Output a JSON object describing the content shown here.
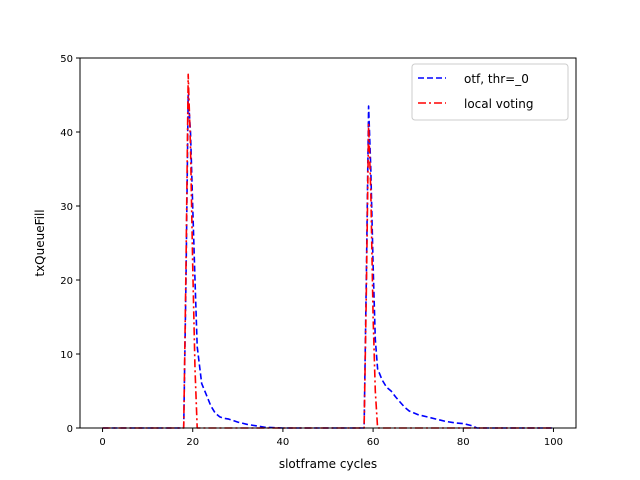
{
  "chart_data": {
    "type": "line",
    "xlabel": "slotframe cycles",
    "ylabel": "txQueueFill",
    "xlim": [
      -5,
      105
    ],
    "ylim": [
      0,
      50
    ],
    "xticks": [
      0,
      20,
      40,
      60,
      80,
      100
    ],
    "yticks": [
      0,
      10,
      20,
      30,
      40,
      50
    ],
    "legend_position": "top-right",
    "series": [
      {
        "name": "otf, thr=_0",
        "color": "#0000ff",
        "style": "dashed",
        "x": [
          0,
          5,
          10,
          15,
          18,
          18.5,
          19,
          19.5,
          20,
          20.5,
          21,
          22,
          23,
          24,
          25,
          26,
          27,
          28,
          30,
          32,
          34,
          36,
          40,
          45,
          50,
          55,
          57,
          58,
          58.5,
          59,
          59.5,
          60,
          60.5,
          61,
          62,
          63,
          64,
          65,
          66,
          67,
          68,
          70,
          72,
          74,
          76,
          78,
          80,
          82,
          83,
          85,
          90,
          95,
          100
        ],
        "y": [
          0,
          0,
          0,
          0,
          0,
          20,
          45,
          40,
          30,
          20,
          11,
          6,
          4.5,
          3,
          2,
          1.5,
          1.3,
          1.2,
          0.8,
          0.5,
          0.3,
          0.1,
          0,
          0,
          0,
          0,
          0,
          0,
          20,
          43.5,
          35,
          22,
          12,
          8,
          6.5,
          5.5,
          5,
          4.2,
          3.5,
          2.8,
          2.3,
          1.8,
          1.5,
          1.2,
          0.9,
          0.7,
          0.6,
          0.3,
          0,
          0,
          0,
          0,
          0
        ]
      },
      {
        "name": "local voting",
        "color": "#ff0000",
        "style": "dashdot",
        "x": [
          0,
          5,
          10,
          15,
          18,
          18.5,
          19,
          19.5,
          20,
          20.5,
          21,
          22,
          25,
          30,
          40,
          50,
          55,
          58,
          58.5,
          59,
          59.5,
          60,
          60.5,
          61,
          62,
          65,
          70,
          80,
          90,
          100
        ],
        "y": [
          0,
          0,
          0,
          0,
          0,
          22,
          47.8,
          38,
          22,
          8,
          0,
          0,
          0,
          0,
          0,
          0,
          0,
          0,
          18,
          41,
          32,
          15,
          5,
          0,
          0,
          0,
          0,
          0,
          0,
          0
        ]
      }
    ]
  }
}
